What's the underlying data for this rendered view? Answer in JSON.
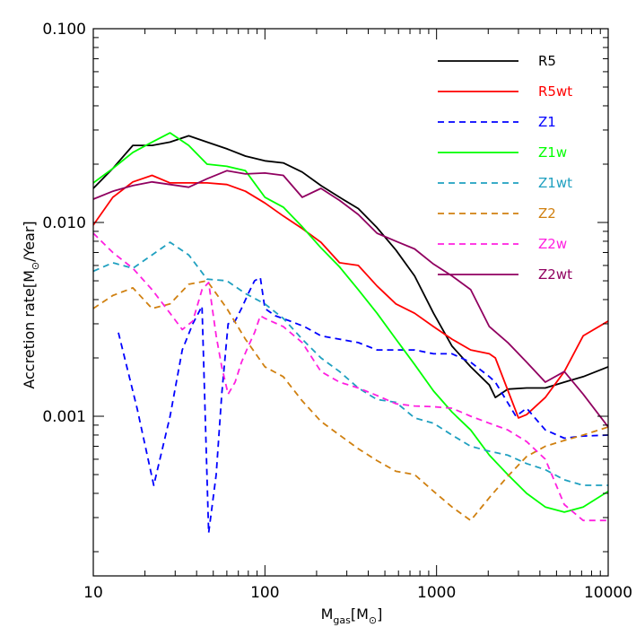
{
  "chart_data": {
    "type": "line",
    "title": "",
    "xlabel": "M_gas[M_⊙]",
    "xlabel_main": "M",
    "xlabel_sub": "gas",
    "xlabel_unit": "[M",
    "xlabel_unit_sub": "⊙",
    "xlabel_unit_close": "]",
    "ylabel": "Accretion rate[M_⊙/Year]",
    "ylabel_pre": "Accretion rate[M",
    "ylabel_sub": "⊙",
    "ylabel_post": "/Year]",
    "xscale": "log",
    "yscale": "log",
    "xlim": [
      10,
      10000
    ],
    "ylim": [
      0.00015,
      0.1
    ],
    "xticks": [
      10,
      100,
      1000,
      10000
    ],
    "xtick_labels": [
      "10",
      "100",
      "1000",
      "10000"
    ],
    "yticks": [
      0.001,
      0.01,
      0.1
    ],
    "ytick_labels": [
      "0.001",
      "0.010",
      "0.100"
    ],
    "legend_position": "top-right",
    "series": [
      {
        "name": "R5",
        "color": "#000000",
        "dash": "solid",
        "x": [
          10,
          13,
          17,
          22,
          28,
          36,
          46,
          60,
          77,
          100,
          128,
          165,
          212,
          272,
          350,
          450,
          580,
          745,
          960,
          1230,
          1580,
          2030,
          2200,
          2600,
          3350,
          4300,
          5550,
          7150,
          10000
        ],
        "y": [
          0.015,
          0.019,
          0.025,
          0.025,
          0.026,
          0.028,
          0.026,
          0.024,
          0.022,
          0.0208,
          0.0203,
          0.0182,
          0.0155,
          0.0135,
          0.0118,
          0.0094,
          0.0072,
          0.0053,
          0.0034,
          0.0023,
          0.0018,
          0.00145,
          0.00125,
          0.00138,
          0.0014,
          0.0014,
          0.0015,
          0.0016,
          0.0018
        ]
      },
      {
        "name": "R5wt",
        "color": "#ff0000",
        "dash": "solid",
        "x": [
          10,
          13,
          17,
          22,
          28,
          36,
          46,
          60,
          77,
          100,
          128,
          165,
          212,
          272,
          350,
          450,
          580,
          745,
          960,
          1230,
          1580,
          2030,
          2200,
          3000,
          3350,
          4300,
          5550,
          7150,
          10000
        ],
        "y": [
          0.0097,
          0.0135,
          0.0162,
          0.0175,
          0.016,
          0.016,
          0.016,
          0.0157,
          0.0145,
          0.0126,
          0.0108,
          0.0093,
          0.0079,
          0.0062,
          0.006,
          0.0047,
          0.0038,
          0.0034,
          0.0029,
          0.0025,
          0.0022,
          0.0021,
          0.002,
          0.00098,
          0.00102,
          0.00125,
          0.0017,
          0.0026,
          0.0031
        ]
      },
      {
        "name": "Z1",
        "color": "#0000ff",
        "dash": "dashed",
        "x": [
          14,
          18,
          22.5,
          28,
          33,
          38,
          43,
          47,
          52,
          56,
          61,
          67,
          73,
          80,
          87,
          94,
          100,
          115,
          140,
          170,
          212,
          272,
          350,
          450,
          580,
          745,
          960,
          1230,
          1580,
          2030,
          2200,
          2900,
          3350,
          4300,
          5550,
          7150,
          10000
        ],
        "y": [
          0.0027,
          0.0011,
          0.00044,
          0.001,
          0.0022,
          0.003,
          0.0037,
          0.00025,
          0.0005,
          0.0013,
          0.003,
          0.0031,
          0.0036,
          0.0043,
          0.005,
          0.0052,
          0.0036,
          0.0033,
          0.0031,
          0.0029,
          0.0026,
          0.0025,
          0.0024,
          0.0022,
          0.0022,
          0.0022,
          0.0021,
          0.0021,
          0.0019,
          0.0016,
          0.0015,
          0.001,
          0.0011,
          0.00085,
          0.00077,
          0.00079,
          0.0008
        ]
      },
      {
        "name": "Z1w",
        "color": "#00ff00",
        "dash": "solid",
        "x": [
          10,
          13,
          17,
          22,
          28,
          36,
          46,
          60,
          77,
          100,
          128,
          165,
          212,
          272,
          350,
          450,
          580,
          745,
          960,
          1230,
          1580,
          2030,
          2600,
          3350,
          4300,
          5550,
          7150,
          10000
        ],
        "y": [
          0.016,
          0.019,
          0.023,
          0.026,
          0.029,
          0.025,
          0.02,
          0.0195,
          0.0185,
          0.0135,
          0.012,
          0.0095,
          0.0074,
          0.0059,
          0.0045,
          0.0034,
          0.0025,
          0.00185,
          0.00135,
          0.00105,
          0.00085,
          0.00063,
          0.0005,
          0.0004,
          0.00034,
          0.00032,
          0.00034,
          0.00041
        ]
      },
      {
        "name": "Z1wt",
        "color": "#1fa0c0",
        "dash": "dashed",
        "x": [
          10,
          13,
          17,
          22,
          28,
          36,
          46,
          60,
          77,
          100,
          128,
          165,
          212,
          272,
          350,
          450,
          580,
          745,
          960,
          1230,
          1580,
          2030,
          2600,
          3350,
          4300,
          5550,
          7150,
          10000
        ],
        "y": [
          0.0056,
          0.0062,
          0.0058,
          0.0068,
          0.0079,
          0.0068,
          0.0051,
          0.005,
          0.0043,
          0.0038,
          0.0032,
          0.0025,
          0.002,
          0.0017,
          0.0014,
          0.00122,
          0.00118,
          0.00098,
          0.00092,
          0.0008,
          0.0007,
          0.00066,
          0.00063,
          0.00057,
          0.00053,
          0.00047,
          0.00044,
          0.00044
        ]
      },
      {
        "name": "Z2",
        "color": "#d08010",
        "dash": "dashed",
        "x": [
          10,
          13,
          17,
          22,
          28,
          36,
          46,
          60,
          77,
          100,
          128,
          165,
          212,
          272,
          350,
          450,
          580,
          745,
          960,
          1230,
          1580,
          2030,
          2600,
          3350,
          4300,
          5550,
          7150,
          10000
        ],
        "y": [
          0.0036,
          0.0042,
          0.0046,
          0.0036,
          0.0038,
          0.0048,
          0.005,
          0.0036,
          0.0025,
          0.0018,
          0.0016,
          0.0012,
          0.00094,
          0.0008,
          0.00068,
          0.00059,
          0.00052,
          0.0005,
          0.00041,
          0.00034,
          0.00029,
          0.00038,
          0.00049,
          0.00062,
          0.0007,
          0.00075,
          0.0008,
          0.00088
        ]
      },
      {
        "name": "Z2w",
        "color": "#ff20e0",
        "dash": "dashed",
        "x": [
          10,
          13,
          17,
          22,
          28,
          33,
          38,
          43,
          47,
          52,
          56,
          61,
          67,
          73,
          80,
          87,
          94,
          100,
          128,
          165,
          212,
          272,
          350,
          450,
          580,
          745,
          960,
          1230,
          1580,
          2030,
          2600,
          3350,
          4300,
          5550,
          7150,
          10000
        ],
        "y": [
          0.0088,
          0.007,
          0.0058,
          0.0045,
          0.0034,
          0.0028,
          0.0031,
          0.0045,
          0.0049,
          0.0026,
          0.0018,
          0.0013,
          0.0015,
          0.0019,
          0.0023,
          0.0027,
          0.0033,
          0.0032,
          0.0029,
          0.0024,
          0.0017,
          0.0015,
          0.0014,
          0.00128,
          0.00116,
          0.00113,
          0.00112,
          0.0011,
          0.001,
          0.00092,
          0.00085,
          0.00074,
          0.0006,
          0.00035,
          0.00029,
          0.00029
        ]
      },
      {
        "name": "Z2wt",
        "color": "#900060",
        "dash": "solid",
        "x": [
          10,
          13,
          17,
          22,
          28,
          36,
          46,
          60,
          77,
          100,
          128,
          165,
          212,
          272,
          350,
          450,
          580,
          745,
          960,
          1230,
          1580,
          2030,
          2600,
          3350,
          4300,
          5550,
          7150,
          10000
        ],
        "y": [
          0.0132,
          0.0145,
          0.0155,
          0.0162,
          0.0157,
          0.0152,
          0.0168,
          0.0185,
          0.0178,
          0.018,
          0.0175,
          0.0135,
          0.015,
          0.013,
          0.011,
          0.0088,
          0.008,
          0.0073,
          0.0061,
          0.0053,
          0.0045,
          0.0029,
          0.0024,
          0.0019,
          0.0015,
          0.0017,
          0.0013,
          0.00088
        ]
      }
    ]
  }
}
